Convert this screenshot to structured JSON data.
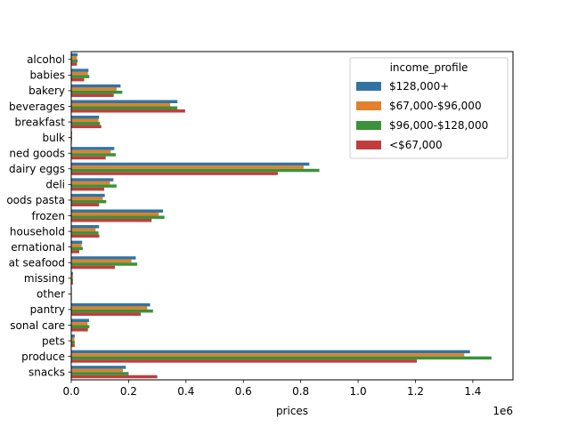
{
  "chart_data": {
    "type": "bar",
    "orientation": "horizontal",
    "title": "",
    "xlabel": "prices",
    "ylabel": "",
    "x_offset_label": "1e6",
    "xlim": [
      0,
      1.54
    ],
    "x_ticks": [
      0.0,
      0.2,
      0.4,
      0.6,
      0.8,
      1.0,
      1.2,
      1.4
    ],
    "x_tick_labels": [
      "0.0",
      "0.2",
      "0.4",
      "0.6",
      "0.8",
      "1.0",
      "1.2",
      "1.4"
    ],
    "grid": false,
    "legend": {
      "title": "income_profile",
      "placement": "top-right"
    },
    "categories": [
      "alcohol",
      "babies",
      "bakery",
      "beverages",
      "breakfast",
      "bulk",
      "canned goods",
      "dairy eggs",
      "deli",
      "dry goods pasta",
      "frozen",
      "household",
      "international",
      "meat seafood",
      "missing",
      "other",
      "pantry",
      "personal care",
      "pets",
      "produce",
      "snacks"
    ],
    "category_labels_visible": [
      "alcohol",
      "babies",
      "bakery",
      "beverages",
      "breakfast",
      "bulk",
      "ned goods",
      "dairy eggs",
      "deli",
      "oods pasta",
      "frozen",
      "household",
      "ernational",
      "at seafood",
      "missing",
      "other",
      "pantry",
      "sonal care",
      "pets",
      "produce",
      "snacks"
    ],
    "series": [
      {
        "name": "$128,000+",
        "color": "#3274a1",
        "values": [
          0.022,
          0.06,
          0.172,
          0.37,
          0.097,
          0.003,
          0.15,
          0.83,
          0.147,
          0.117,
          0.32,
          0.097,
          0.038,
          0.225,
          0.006,
          0.002,
          0.275,
          0.062,
          0.012,
          1.39,
          0.19
        ]
      },
      {
        "name": "$67,000-$96,000",
        "color": "#e1812c",
        "values": [
          0.02,
          0.058,
          0.158,
          0.345,
          0.095,
          0.003,
          0.138,
          0.81,
          0.135,
          0.11,
          0.305,
          0.085,
          0.036,
          0.21,
          0.006,
          0.002,
          0.265,
          0.057,
          0.011,
          1.37,
          0.18
        ]
      },
      {
        "name": "$96,000-$128,000",
        "color": "#3a923a",
        "values": [
          0.022,
          0.063,
          0.178,
          0.37,
          0.1,
          0.003,
          0.155,
          0.865,
          0.158,
          0.122,
          0.325,
          0.095,
          0.04,
          0.23,
          0.006,
          0.002,
          0.285,
          0.063,
          0.012,
          1.465,
          0.2
        ]
      },
      {
        "name": "<$67,000",
        "color": "#c03d3e",
        "values": [
          0.02,
          0.045,
          0.148,
          0.397,
          0.105,
          0.002,
          0.12,
          0.72,
          0.115,
          0.097,
          0.28,
          0.098,
          0.028,
          0.152,
          0.006,
          0.002,
          0.242,
          0.058,
          0.012,
          1.205,
          0.3
        ]
      }
    ]
  }
}
